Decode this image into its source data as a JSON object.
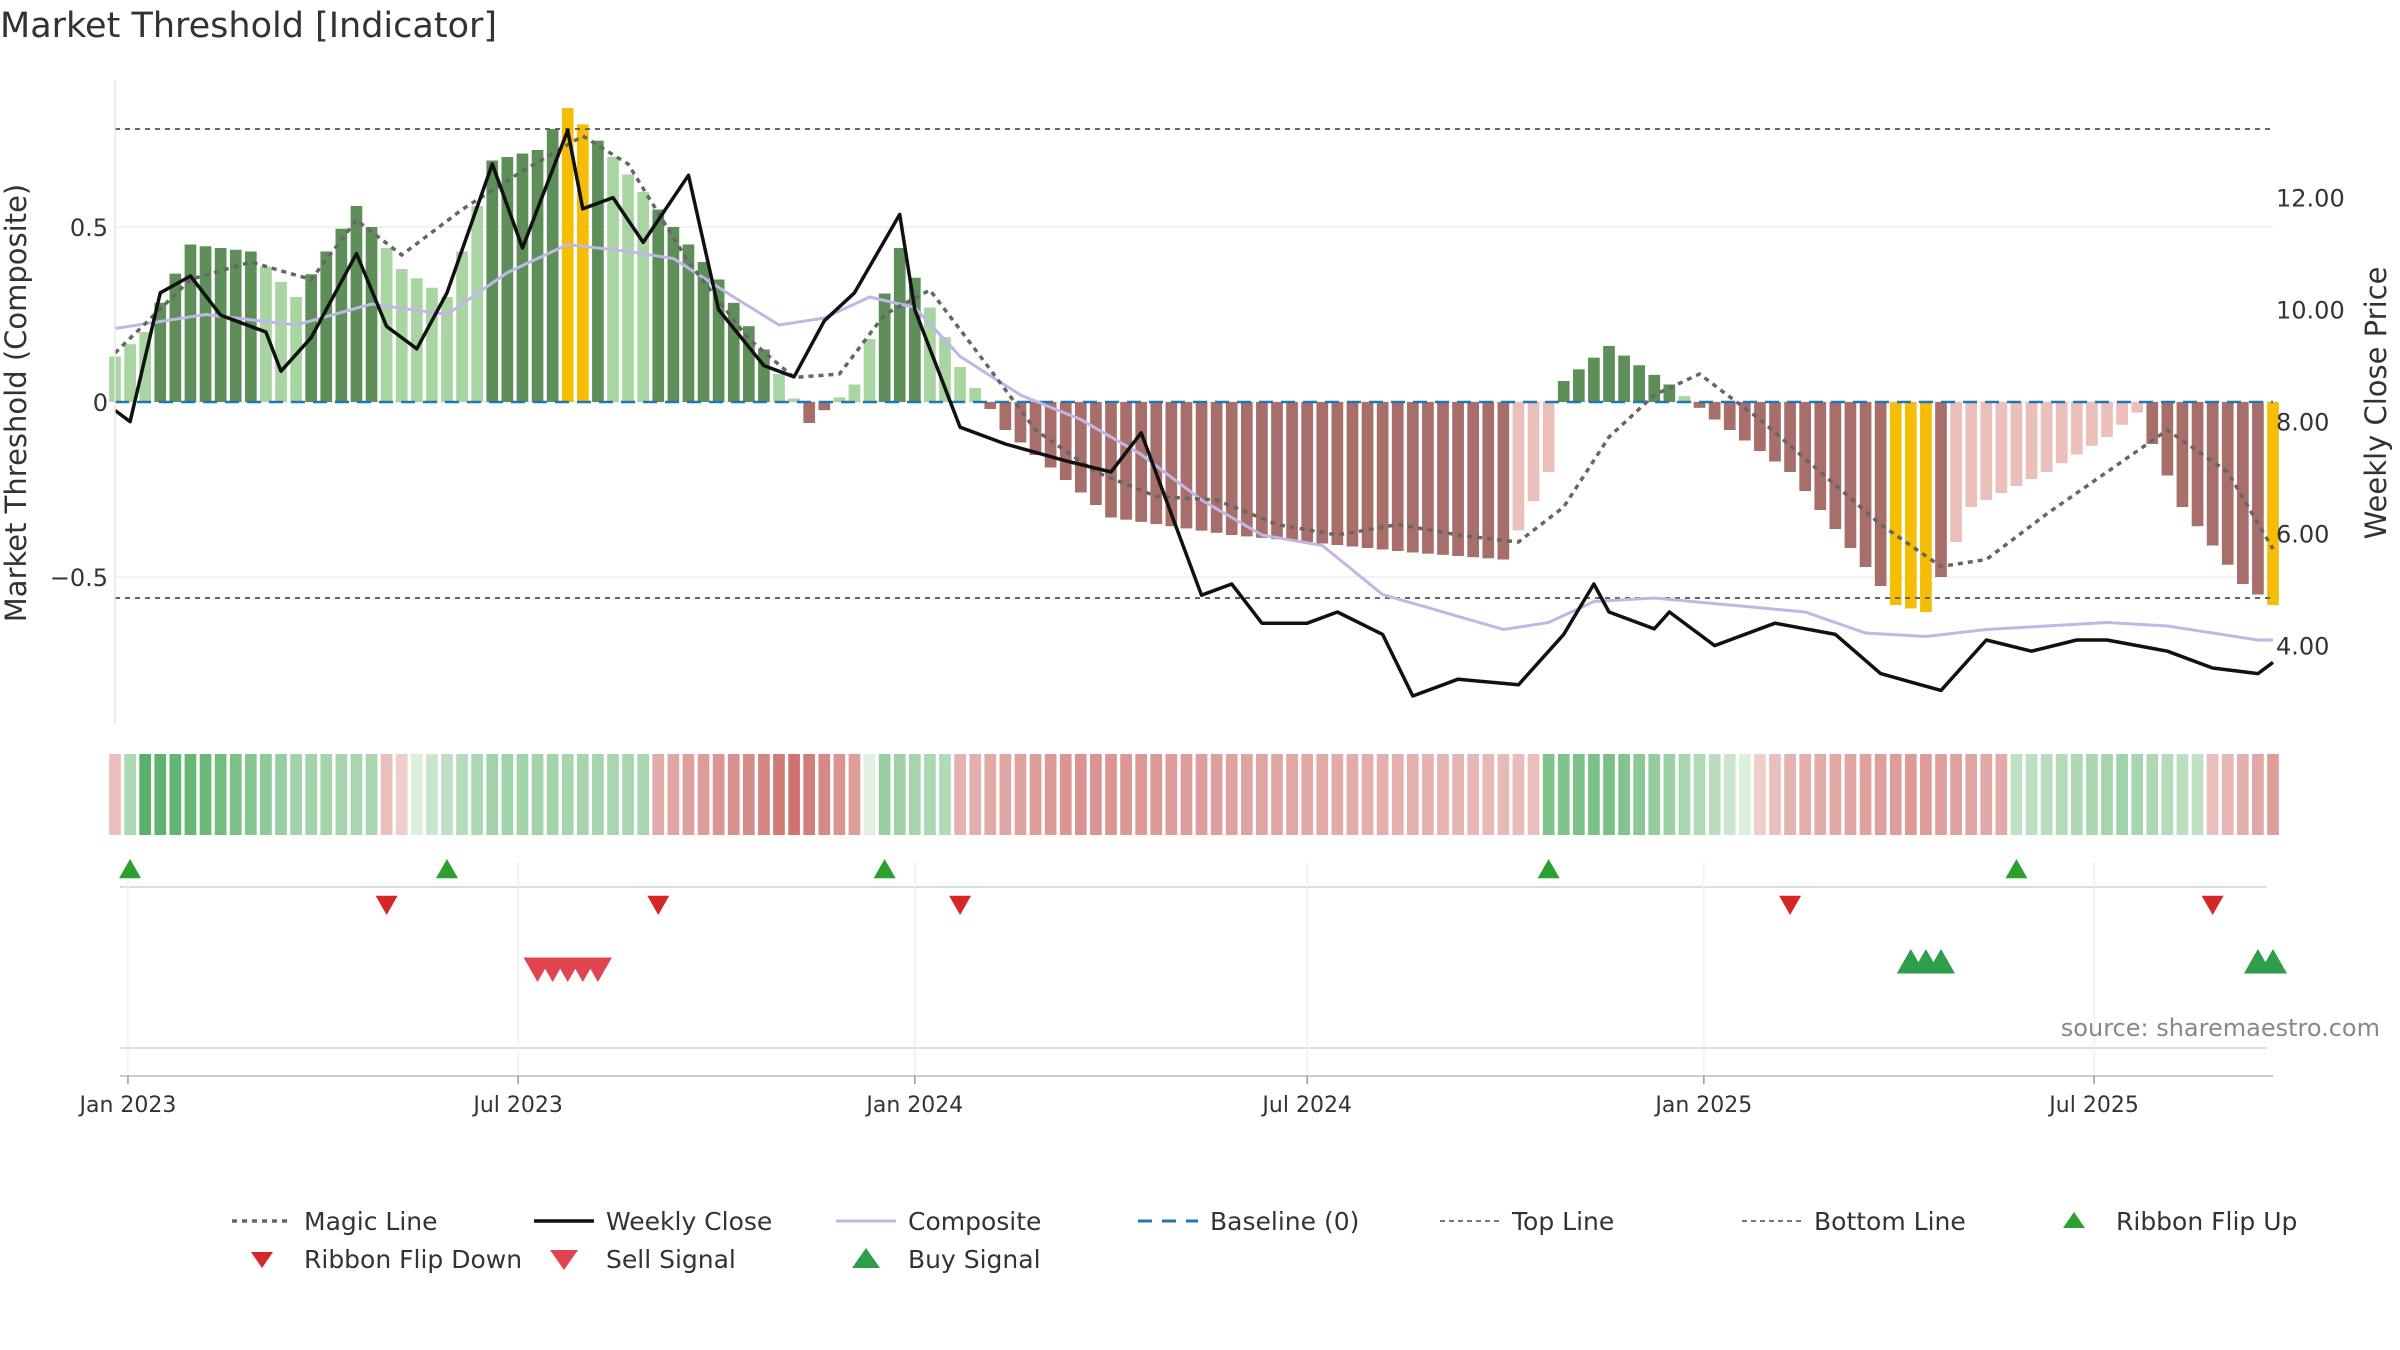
{
  "chart_data": {
    "type": "bar",
    "title": "Market Threshold [Indicator]",
    "ylabel_left": "Market Threshold (Composite)",
    "ylabel_right": "Weekly Close Price",
    "ylim_left": [
      -0.92,
      0.92
    ],
    "ylim_right": [
      2.6,
      14.1
    ],
    "yticks_left": [
      {
        "value": 0.5,
        "label": "0.5"
      },
      {
        "value": 0,
        "label": "0"
      },
      {
        "value": -0.5,
        "label": "−0.5"
      }
    ],
    "yticks_right": [
      {
        "value": 12,
        "label": "12.00"
      },
      {
        "value": 10,
        "label": "10.00"
      },
      {
        "value": 8,
        "label": "8.00"
      },
      {
        "value": 6,
        "label": "6.00"
      },
      {
        "value": 4,
        "label": "4.00"
      }
    ],
    "x_range": [
      "2022-12-26",
      "2025-09-22"
    ],
    "xticks": [
      {
        "date": "2023-01-01",
        "label": "Jan 2023"
      },
      {
        "date": "2023-07-01",
        "label": "Jul 2023"
      },
      {
        "date": "2024-01-01",
        "label": "Jan 2024"
      },
      {
        "date": "2024-07-01",
        "label": "Jul 2024"
      },
      {
        "date": "2025-01-01",
        "label": "Jan 2025"
      },
      {
        "date": "2025-07-01",
        "label": "Jul 2025"
      }
    ],
    "top_line": 0.78,
    "bottom_line": -0.56,
    "baseline": 0,
    "composite_keys": [
      {
        "date": "2022-12-26",
        "value": 0.21
      },
      {
        "date": "2023-02-06",
        "value": 0.25
      },
      {
        "date": "2023-03-20",
        "value": 0.22
      },
      {
        "date": "2023-04-24",
        "value": 0.28
      },
      {
        "date": "2023-05-29",
        "value": 0.25
      },
      {
        "date": "2023-06-26",
        "value": 0.37
      },
      {
        "date": "2023-07-10",
        "value": 0.41
      },
      {
        "date": "2023-07-24",
        "value": 0.45
      },
      {
        "date": "2023-08-21",
        "value": 0.43
      },
      {
        "date": "2023-09-11",
        "value": 0.41
      },
      {
        "date": "2023-10-09",
        "value": 0.3
      },
      {
        "date": "2023-10-30",
        "value": 0.22
      },
      {
        "date": "2023-11-20",
        "value": 0.24
      },
      {
        "date": "2023-12-11",
        "value": 0.3
      },
      {
        "date": "2024-01-01",
        "value": 0.27
      },
      {
        "date": "2024-01-22",
        "value": 0.13
      },
      {
        "date": "2024-02-19",
        "value": 0.02
      },
      {
        "date": "2024-03-18",
        "value": -0.05
      },
      {
        "date": "2024-04-15",
        "value": -0.15
      },
      {
        "date": "2024-05-13",
        "value": -0.28
      },
      {
        "date": "2024-06-10",
        "value": -0.38
      },
      {
        "date": "2024-07-08",
        "value": -0.41
      },
      {
        "date": "2024-08-05",
        "value": -0.55
      },
      {
        "date": "2024-09-02",
        "value": -0.6
      },
      {
        "date": "2024-09-30",
        "value": -0.65
      },
      {
        "date": "2024-10-21",
        "value": -0.63
      },
      {
        "date": "2024-11-11",
        "value": -0.57
      },
      {
        "date": "2024-12-09",
        "value": -0.56
      },
      {
        "date": "2025-01-13",
        "value": -0.58
      },
      {
        "date": "2025-02-17",
        "value": -0.6
      },
      {
        "date": "2025-03-17",
        "value": -0.66
      },
      {
        "date": "2025-04-14",
        "value": -0.67
      },
      {
        "date": "2025-05-12",
        "value": -0.65
      },
      {
        "date": "2025-06-09",
        "value": -0.64
      },
      {
        "date": "2025-07-07",
        "value": -0.63
      },
      {
        "date": "2025-08-04",
        "value": -0.64
      },
      {
        "date": "2025-09-15",
        "value": -0.68
      }
    ],
    "magic_keys": [
      {
        "date": "2022-12-26",
        "value": 0.14
      },
      {
        "date": "2023-01-30",
        "value": 0.35
      },
      {
        "date": "2023-02-27",
        "value": 0.4
      },
      {
        "date": "2023-03-27",
        "value": 0.35
      },
      {
        "date": "2023-04-17",
        "value": 0.52
      },
      {
        "date": "2023-05-08",
        "value": 0.42
      },
      {
        "date": "2023-06-05",
        "value": 0.55
      },
      {
        "date": "2023-07-03",
        "value": 0.66
      },
      {
        "date": "2023-07-31",
        "value": 0.76
      },
      {
        "date": "2023-08-21",
        "value": 0.68
      },
      {
        "date": "2023-09-18",
        "value": 0.4
      },
      {
        "date": "2023-10-16",
        "value": 0.18
      },
      {
        "date": "2023-11-06",
        "value": 0.07
      },
      {
        "date": "2023-11-27",
        "value": 0.08
      },
      {
        "date": "2023-12-18",
        "value": 0.25
      },
      {
        "date": "2024-01-08",
        "value": 0.32
      },
      {
        "date": "2024-01-29",
        "value": 0.15
      },
      {
        "date": "2024-02-26",
        "value": -0.08
      },
      {
        "date": "2024-03-25",
        "value": -0.2
      },
      {
        "date": "2024-04-22",
        "value": -0.27
      },
      {
        "date": "2024-05-20",
        "value": -0.28
      },
      {
        "date": "2024-06-17",
        "value": -0.35
      },
      {
        "date": "2024-07-15",
        "value": -0.38
      },
      {
        "date": "2024-08-12",
        "value": -0.35
      },
      {
        "date": "2024-09-09",
        "value": -0.38
      },
      {
        "date": "2024-10-07",
        "value": -0.4
      },
      {
        "date": "2024-10-28",
        "value": -0.3
      },
      {
        "date": "2024-11-18",
        "value": -0.1
      },
      {
        "date": "2024-12-09",
        "value": 0.02
      },
      {
        "date": "2024-12-30",
        "value": 0.08
      },
      {
        "date": "2025-01-27",
        "value": -0.05
      },
      {
        "date": "2025-02-24",
        "value": -0.2
      },
      {
        "date": "2025-03-24",
        "value": -0.35
      },
      {
        "date": "2025-04-21",
        "value": -0.47
      },
      {
        "date": "2025-05-12",
        "value": -0.45
      },
      {
        "date": "2025-06-09",
        "value": -0.32
      },
      {
        "date": "2025-07-07",
        "value": -0.2
      },
      {
        "date": "2025-08-04",
        "value": -0.08
      },
      {
        "date": "2025-09-01",
        "value": -0.2
      },
      {
        "date": "2025-09-22",
        "value": -0.42
      }
    ],
    "close_keys": [
      {
        "date": "2022-12-26",
        "value": 8.2
      },
      {
        "date": "2023-01-02",
        "value": 8.0
      },
      {
        "date": "2023-01-16",
        "value": 10.3
      },
      {
        "date": "2023-01-30",
        "value": 10.6
      },
      {
        "date": "2023-02-13",
        "value": 9.9
      },
      {
        "date": "2023-03-06",
        "value": 9.6
      },
      {
        "date": "2023-03-13",
        "value": 8.9
      },
      {
        "date": "2023-03-27",
        "value": 9.5
      },
      {
        "date": "2023-04-17",
        "value": 11.0
      },
      {
        "date": "2023-05-01",
        "value": 9.7
      },
      {
        "date": "2023-05-15",
        "value": 9.3
      },
      {
        "date": "2023-05-29",
        "value": 10.3
      },
      {
        "date": "2023-06-19",
        "value": 12.6
      },
      {
        "date": "2023-07-03",
        "value": 11.1
      },
      {
        "date": "2023-07-24",
        "value": 13.2
      },
      {
        "date": "2023-07-31",
        "value": 11.8
      },
      {
        "date": "2023-08-14",
        "value": 12.0
      },
      {
        "date": "2023-08-28",
        "value": 11.2
      },
      {
        "date": "2023-09-04",
        "value": 11.6
      },
      {
        "date": "2023-09-18",
        "value": 12.4
      },
      {
        "date": "2023-10-02",
        "value": 10.0
      },
      {
        "date": "2023-10-23",
        "value": 9.0
      },
      {
        "date": "2023-11-06",
        "value": 8.8
      },
      {
        "date": "2023-11-20",
        "value": 9.8
      },
      {
        "date": "2023-12-04",
        "value": 10.3
      },
      {
        "date": "2023-12-25",
        "value": 11.7
      },
      {
        "date": "2024-01-01",
        "value": 10.0
      },
      {
        "date": "2024-01-22",
        "value": 7.9
      },
      {
        "date": "2024-02-12",
        "value": 7.6
      },
      {
        "date": "2024-03-11",
        "value": 7.3
      },
      {
        "date": "2024-04-01",
        "value": 7.1
      },
      {
        "date": "2024-04-15",
        "value": 7.8
      },
      {
        "date": "2024-05-13",
        "value": 4.9
      },
      {
        "date": "2024-05-27",
        "value": 5.1
      },
      {
        "date": "2024-06-10",
        "value": 4.4
      },
      {
        "date": "2024-07-01",
        "value": 4.4
      },
      {
        "date": "2024-07-15",
        "value": 4.6
      },
      {
        "date": "2024-08-05",
        "value": 4.2
      },
      {
        "date": "2024-08-19",
        "value": 3.1
      },
      {
        "date": "2024-09-09",
        "value": 3.4
      },
      {
        "date": "2024-10-07",
        "value": 3.3
      },
      {
        "date": "2024-10-28",
        "value": 4.2
      },
      {
        "date": "2024-11-11",
        "value": 5.1
      },
      {
        "date": "2024-11-18",
        "value": 4.6
      },
      {
        "date": "2024-12-09",
        "value": 4.3
      },
      {
        "date": "2024-12-16",
        "value": 4.6
      },
      {
        "date": "2025-01-06",
        "value": 4.0
      },
      {
        "date": "2025-02-03",
        "value": 4.4
      },
      {
        "date": "2025-03-03",
        "value": 4.2
      },
      {
        "date": "2025-03-24",
        "value": 3.5
      },
      {
        "date": "2025-04-21",
        "value": 3.2
      },
      {
        "date": "2025-05-12",
        "value": 4.1
      },
      {
        "date": "2025-06-02",
        "value": 3.9
      },
      {
        "date": "2025-06-23",
        "value": 4.1
      },
      {
        "date": "2025-07-07",
        "value": 4.1
      },
      {
        "date": "2025-08-04",
        "value": 3.9
      },
      {
        "date": "2025-08-25",
        "value": 3.6
      },
      {
        "date": "2025-09-15",
        "value": 3.5
      },
      {
        "date": "2025-09-22",
        "value": 3.7
      }
    ],
    "composite_bar_keys": [
      {
        "date": "2022-12-26",
        "value": 0.13
      },
      {
        "date": "2023-01-09",
        "value": 0.2
      },
      {
        "date": "2023-01-30",
        "value": 0.45
      },
      {
        "date": "2023-02-27",
        "value": 0.43
      },
      {
        "date": "2023-03-20",
        "value": 0.3
      },
      {
        "date": "2023-04-17",
        "value": 0.56
      },
      {
        "date": "2023-05-08",
        "value": 0.38
      },
      {
        "date": "2023-05-29",
        "value": 0.3
      },
      {
        "date": "2023-06-19",
        "value": 0.69
      },
      {
        "date": "2023-07-10",
        "value": 0.72
      },
      {
        "date": "2023-07-24",
        "value": 0.84
      },
      {
        "date": "2023-08-14",
        "value": 0.7
      },
      {
        "date": "2023-09-04",
        "value": 0.55
      },
      {
        "date": "2023-10-02",
        "value": 0.35
      },
      {
        "date": "2023-10-23",
        "value": 0.15
      },
      {
        "date": "2023-11-06",
        "value": 0.01
      },
      {
        "date": "2023-11-13",
        "value": -0.06
      },
      {
        "date": "2023-12-04",
        "value": 0.05
      },
      {
        "date": "2023-12-25",
        "value": 0.44
      },
      {
        "date": "2024-01-22",
        "value": 0.1
      },
      {
        "date": "2024-02-12",
        "value": -0.08
      },
      {
        "date": "2024-04-01",
        "value": -0.33
      },
      {
        "date": "2024-05-27",
        "value": -0.38
      },
      {
        "date": "2024-07-01",
        "value": -0.4
      },
      {
        "date": "2024-08-19",
        "value": -0.43
      },
      {
        "date": "2024-09-30",
        "value": -0.45
      },
      {
        "date": "2024-10-21",
        "value": -0.2
      },
      {
        "date": "2024-10-28",
        "value": 0.06
      },
      {
        "date": "2024-11-18",
        "value": 0.16
      },
      {
        "date": "2024-12-16",
        "value": 0.05
      },
      {
        "date": "2025-01-06",
        "value": -0.05
      },
      {
        "date": "2025-02-10",
        "value": -0.2
      },
      {
        "date": "2025-03-31",
        "value": -0.58
      },
      {
        "date": "2025-04-14",
        "value": -0.6
      },
      {
        "date": "2025-05-05",
        "value": -0.3
      },
      {
        "date": "2025-06-09",
        "value": -0.2
      },
      {
        "date": "2025-07-07",
        "value": -0.1
      },
      {
        "date": "2025-07-21",
        "value": -0.03
      },
      {
        "date": "2025-08-11",
        "value": -0.3
      },
      {
        "date": "2025-09-08",
        "value": -0.52
      },
      {
        "date": "2025-09-22",
        "value": -0.58
      }
    ],
    "ribbon_flip_up": [
      "2023-01-02",
      "2023-05-29",
      "2023-12-18",
      "2024-10-21",
      "2025-05-26"
    ],
    "ribbon_flip_down": [
      "2023-05-01",
      "2023-09-04",
      "2024-01-22",
      "2025-02-10",
      "2025-08-25"
    ],
    "sell_signal": [
      "2023-07-10",
      "2023-07-17",
      "2023-07-24",
      "2023-07-31",
      "2023-08-07"
    ],
    "buy_signal": [
      "2025-04-07",
      "2025-04-14",
      "2025-04-21",
      "2025-09-15",
      "2025-09-22"
    ],
    "ribbon_keys": [
      {
        "date": "2022-12-26",
        "value": -0.2
      },
      {
        "date": "2023-01-09",
        "value": 0.85
      },
      {
        "date": "2023-02-13",
        "value": 0.7
      },
      {
        "date": "2023-03-20",
        "value": 0.4
      },
      {
        "date": "2023-04-24",
        "value": 0.35
      },
      {
        "date": "2023-05-01",
        "value": -0.2
      },
      {
        "date": "2023-05-22",
        "value": 0.15
      },
      {
        "date": "2023-06-19",
        "value": 0.4
      },
      {
        "date": "2023-08-28",
        "value": 0.35
      },
      {
        "date": "2023-09-04",
        "value": -0.35
      },
      {
        "date": "2023-10-16",
        "value": -0.6
      },
      {
        "date": "2023-11-06",
        "value": -0.8
      },
      {
        "date": "2023-12-04",
        "value": -0.45
      },
      {
        "date": "2023-12-18",
        "value": 0.45
      },
      {
        "date": "2024-01-15",
        "value": 0.3
      },
      {
        "date": "2024-01-22",
        "value": -0.3
      },
      {
        "date": "2024-03-18",
        "value": -0.55
      },
      {
        "date": "2024-06-10",
        "value": -0.4
      },
      {
        "date": "2024-08-26",
        "value": -0.3
      },
      {
        "date": "2024-10-14",
        "value": -0.2
      },
      {
        "date": "2024-10-21",
        "value": 0.6
      },
      {
        "date": "2024-11-18",
        "value": 0.65
      },
      {
        "date": "2025-01-06",
        "value": 0.25
      },
      {
        "date": "2025-02-10",
        "value": -0.3
      },
      {
        "date": "2025-04-07",
        "value": -0.5
      },
      {
        "date": "2025-05-19",
        "value": -0.35
      },
      {
        "date": "2025-05-26",
        "value": 0.2
      },
      {
        "date": "2025-07-14",
        "value": 0.4
      },
      {
        "date": "2025-08-18",
        "value": 0.2
      },
      {
        "date": "2025-08-25",
        "value": -0.2
      },
      {
        "date": "2025-09-22",
        "value": -0.45
      }
    ],
    "watermark": "source: sharemaestro.com",
    "legend": [
      {
        "key": "magic",
        "label": "Magic Line"
      },
      {
        "key": "close",
        "label": "Weekly Close"
      },
      {
        "key": "composite",
        "label": "Composite"
      },
      {
        "key": "baseline",
        "label": "Baseline (0)"
      },
      {
        "key": "top",
        "label": "Top Line"
      },
      {
        "key": "bottom",
        "label": "Bottom Line"
      },
      {
        "key": "flipup",
        "label": "Ribbon Flip Up"
      },
      {
        "key": "flipdown",
        "label": "Ribbon Flip Down"
      },
      {
        "key": "sell",
        "label": "Sell Signal"
      },
      {
        "key": "buy",
        "label": "Buy Signal"
      }
    ],
    "colors": {
      "pos_strong": "#5e8f59",
      "pos_weak": "#a8d5a2",
      "neg_strong": "#a86e6a",
      "neg_weak": "#ebbfba",
      "extreme": "#f5bd06",
      "close": "#111111",
      "composite": "#bfb8e6",
      "magic": "#666666",
      "baseline": "#1f77b4",
      "flip_up": "#2ca02c",
      "flip_down": "#d62728",
      "sell": "#e0444f",
      "buy": "#2e9e4a"
    }
  }
}
